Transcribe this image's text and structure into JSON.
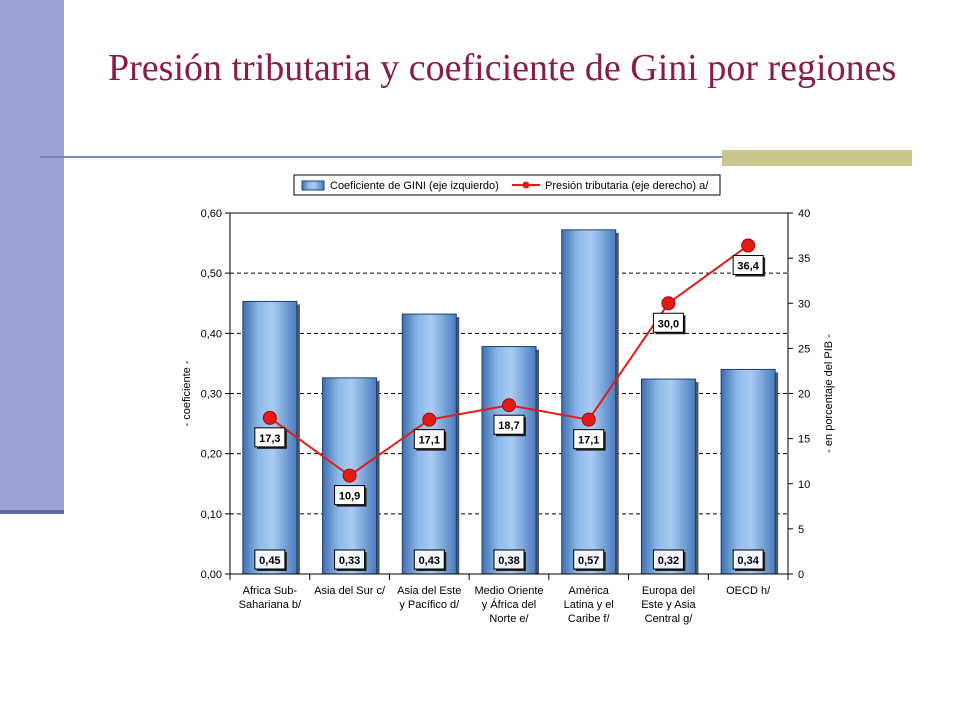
{
  "slide": {
    "title": "Presión tributaria y coeficiente de Gini por regiones"
  },
  "colors": {
    "title": "#8a1c4a",
    "sidebar": "#9aa3d6",
    "rule": "#7b84c2",
    "rule_accent": "#c8c68c",
    "bar": "#6f9fd8",
    "line": "#e41b17",
    "label_box": "#f3f7ff"
  },
  "chart_data": {
    "type": "bar",
    "categories": [
      [
        "Africa Sub-",
        "Sahariana b/"
      ],
      [
        "Asia del Sur c/"
      ],
      [
        "Asia del Este",
        "y Pacífico d/"
      ],
      [
        "Medio Oriente",
        "y África del",
        "Norte e/"
      ],
      [
        "América",
        "Latina y el",
        "Caribe f/"
      ],
      [
        "Europa del",
        "Este y Asia",
        "Central g/"
      ],
      [
        "OECD h/"
      ]
    ],
    "series": [
      {
        "name": "Coeficiente de GINI (eje izquierdo)",
        "axis": "left",
        "values": [
          0.453,
          0.326,
          0.432,
          0.378,
          0.572,
          0.324,
          0.34
        ],
        "labels": [
          "0,45",
          "0,33",
          "0,43",
          "0,38",
          "0,57",
          "0,32",
          "0,34"
        ]
      },
      {
        "name": "Presión tributaria (eje derecho) a/",
        "axis": "right",
        "type": "line",
        "values": [
          17.3,
          10.9,
          17.1,
          18.7,
          17.1,
          30.0,
          36.4
        ],
        "labels": [
          "17,3",
          "10,9",
          "17,1",
          "18,7",
          "17,1",
          "30,0",
          "36,4"
        ]
      }
    ],
    "ylabel": "- coeficiente -",
    "y2label": "- en porcentaje del PIB -",
    "ylim": [
      0,
      0.6
    ],
    "y2lim": [
      0,
      40
    ],
    "yticks": [
      "0,00",
      "0,10",
      "0,20",
      "0,30",
      "0,40",
      "0,50",
      "0,60"
    ],
    "y2ticks": [
      "0",
      "5",
      "10",
      "15",
      "20",
      "25",
      "30",
      "35",
      "40"
    ],
    "grid": true,
    "legend": "top"
  }
}
